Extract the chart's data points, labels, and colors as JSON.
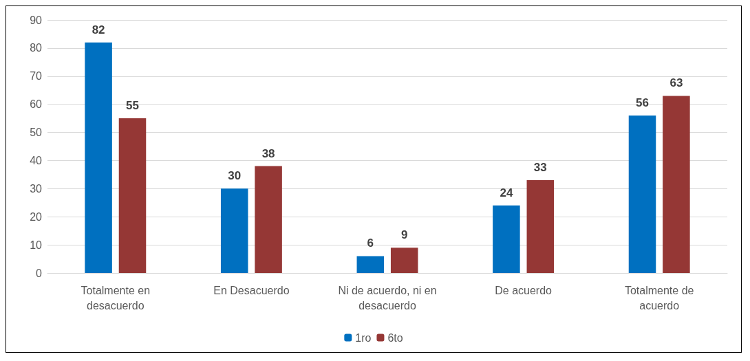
{
  "chart_data": {
    "type": "bar",
    "categories": [
      "Totalmente en\ndesacuerdo",
      "En Desacuerdo",
      "Ni de acuerdo, ni en\ndesacuerdo",
      "De acuerdo",
      "Totalmente de\nacuerdo"
    ],
    "series": [
      {
        "name": "1ro",
        "color": "#0070c0",
        "values": [
          82,
          30,
          6,
          24,
          56
        ]
      },
      {
        "name": "6to",
        "color": "#953735",
        "values": [
          55,
          38,
          9,
          33,
          63
        ]
      }
    ],
    "ylim": [
      0,
      90
    ],
    "yticks": [
      0,
      10,
      20,
      30,
      40,
      50,
      60,
      70,
      80,
      90
    ],
    "grid": "y",
    "legend": "bottom",
    "data_labels": true
  }
}
